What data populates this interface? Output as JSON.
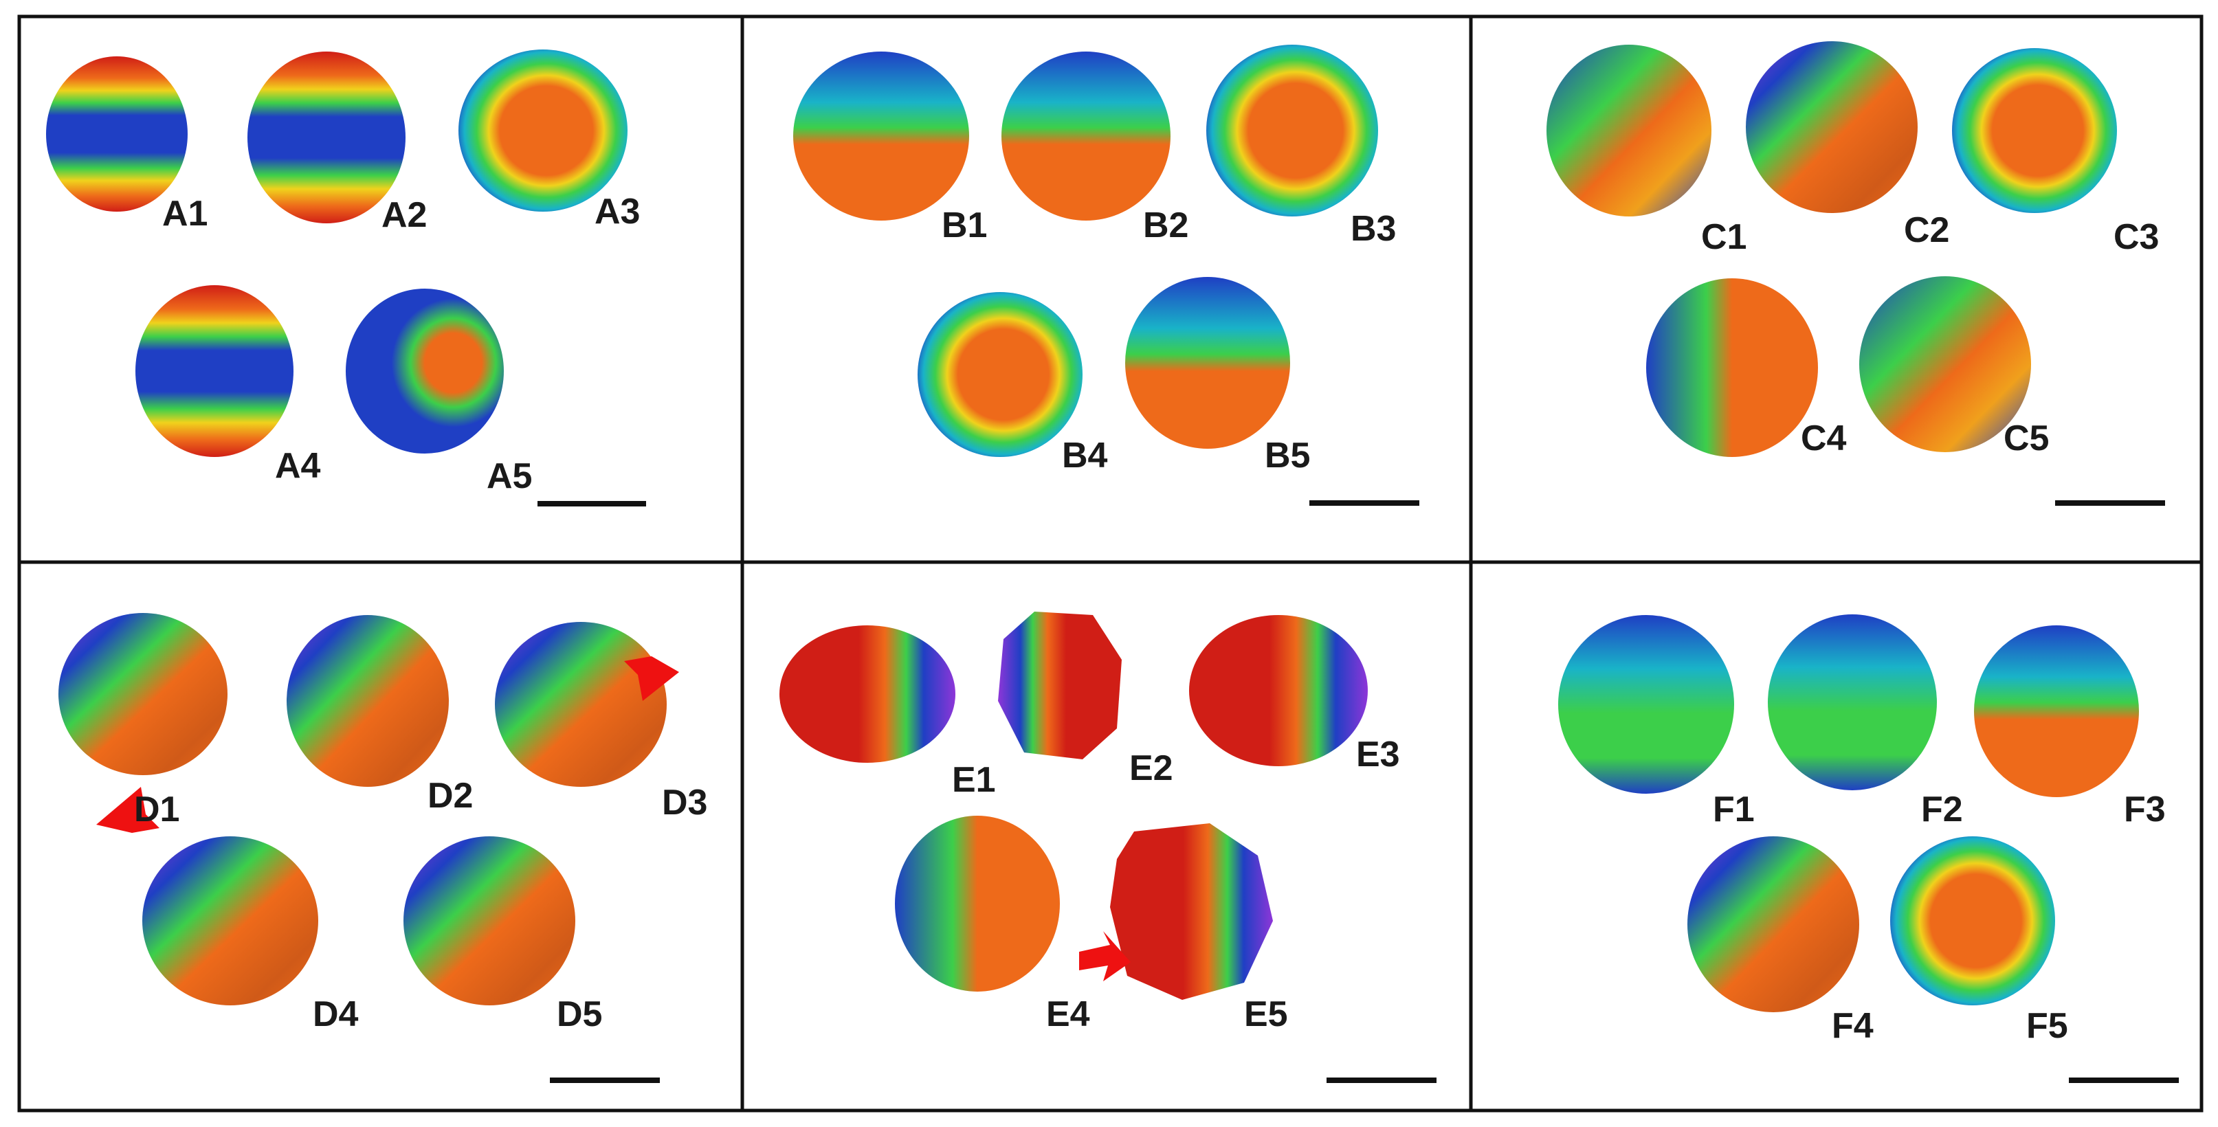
{
  "panels": [
    {
      "id": "A",
      "labels": [
        "A1",
        "A2",
        "A3",
        "A4",
        "A5"
      ]
    },
    {
      "id": "B",
      "labels": [
        "B1",
        "B2",
        "B3",
        "B4",
        "B5"
      ]
    },
    {
      "id": "C",
      "labels": [
        "C1",
        "C2",
        "C3",
        "C4",
        "C5"
      ]
    },
    {
      "id": "D",
      "labels": [
        "D1",
        "D2",
        "D3",
        "D4",
        "D5"
      ]
    },
    {
      "id": "E",
      "labels": [
        "E1",
        "E2",
        "E3",
        "E4",
        "E5"
      ]
    },
    {
      "id": "F",
      "labels": [
        "F1",
        "F2",
        "F3",
        "F4",
        "F5"
      ]
    }
  ],
  "colors": {
    "blue": "#1f3fc4",
    "cyan": "#19b3c8",
    "green": "#3ccf4a",
    "yellow": "#f0d21c",
    "orange": "#ee6a1a",
    "red": "#d01e16",
    "purple": "#8e36d8",
    "border": "#111111",
    "arrow": "#ee1111"
  }
}
